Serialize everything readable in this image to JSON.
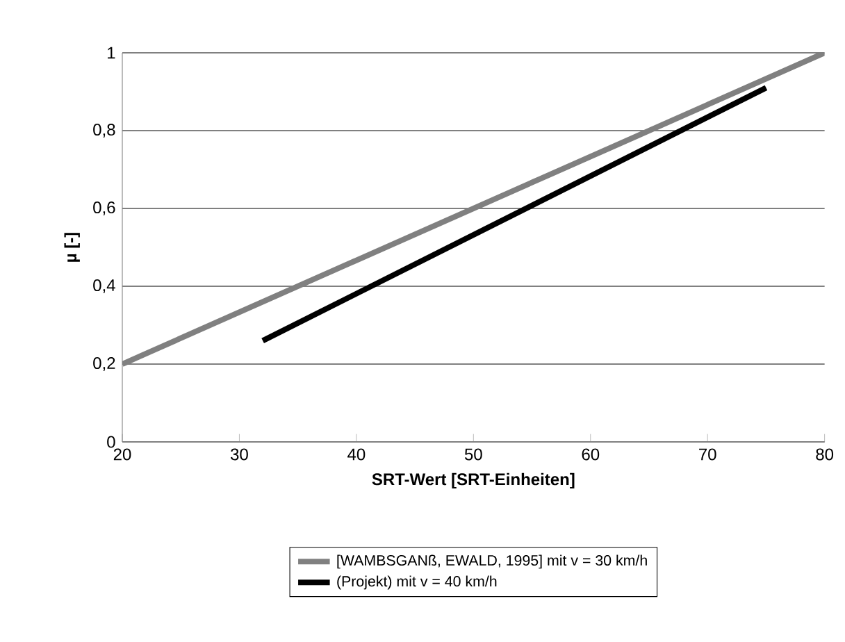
{
  "chart_data": {
    "type": "line",
    "xlabel": "SRT-Wert [SRT-Einheiten]",
    "ylabel": "µ [-]",
    "xlim": [
      20,
      80
    ],
    "xticks": [
      20,
      30,
      40,
      50,
      60,
      70,
      80
    ],
    "ylim": [
      0,
      1
    ],
    "yticks": [
      0,
      {
        "value": 0.2,
        "label": "0,2"
      },
      {
        "value": 0.4,
        "label": "0,4"
      },
      {
        "value": 0.6,
        "label": "0,6"
      },
      {
        "value": 0.8,
        "label": "0,8"
      },
      1
    ],
    "grid": "y",
    "legend": "bottom",
    "marker": "none",
    "line_style": "solid",
    "series": [
      {
        "name": "[WAMBSGANß, EWALD, 1995] mit v = 30 km/h",
        "color": "#808080",
        "x": [
          20,
          80
        ],
        "values": [
          0.2,
          1.0
        ]
      },
      {
        "name": "(Projekt) mit v = 40 km/h",
        "color": "#000000",
        "x": [
          32,
          75
        ],
        "values": [
          0.26,
          0.91
        ]
      }
    ]
  }
}
